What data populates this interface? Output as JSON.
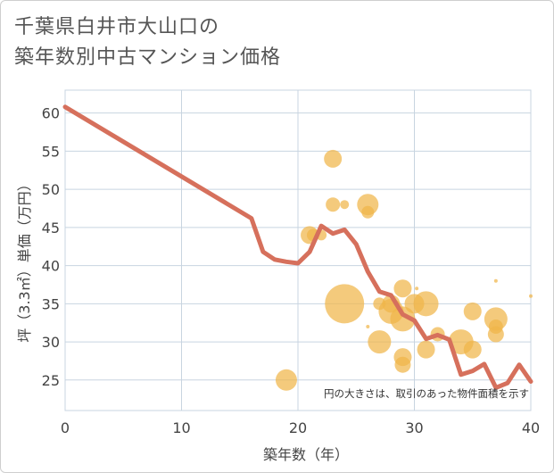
{
  "chart_data": {
    "type": "scatter",
    "title_lines": [
      "千葉県白井市大山口の",
      "築年数別中古マンション価格"
    ],
    "xlabel": "築年数（年）",
    "ylabel": "坪（3.3㎡）単価（万円）",
    "note": "円の大きさは、取引のあった物件面積を示す",
    "xlim": [
      0,
      40
    ],
    "ylim": [
      21,
      63
    ],
    "xticks": [
      0,
      10,
      20,
      30,
      40
    ],
    "yticks": [
      25,
      30,
      35,
      40,
      45,
      50,
      55,
      60
    ],
    "grid": true,
    "colors": {
      "line": "#d6705c",
      "bubble": "#f0b54a",
      "grid": "#c8d4e0"
    },
    "series": [
      {
        "type": "line",
        "points": [
          [
            0,
            60.8
          ],
          [
            16,
            46.2
          ],
          [
            17,
            41.8
          ],
          [
            18,
            40.8
          ],
          [
            19,
            40.5
          ],
          [
            20,
            40.3
          ],
          [
            21,
            41.8
          ],
          [
            22,
            45.2
          ],
          [
            23,
            44.2
          ],
          [
            24,
            44.7
          ],
          [
            25,
            42.8
          ],
          [
            26,
            39.2
          ],
          [
            27,
            36.6
          ],
          [
            28,
            36.1
          ],
          [
            29,
            33.6
          ],
          [
            30,
            32.8
          ],
          [
            31,
            30.4
          ],
          [
            32,
            30.9
          ],
          [
            33,
            30.3
          ],
          [
            34,
            25.7
          ],
          [
            35,
            26.2
          ],
          [
            36,
            27.1
          ],
          [
            37,
            24.0
          ],
          [
            38,
            24.6
          ],
          [
            39,
            27.0
          ],
          [
            40,
            24.8
          ]
        ]
      },
      {
        "type": "bubble",
        "points": [
          [
            19,
            25,
            12
          ],
          [
            21,
            44,
            10
          ],
          [
            21.3,
            44,
            7
          ],
          [
            22,
            44,
            6
          ],
          [
            23,
            54,
            10
          ],
          [
            23,
            48,
            8
          ],
          [
            24,
            48,
            5
          ],
          [
            24,
            35,
            22
          ],
          [
            26,
            48,
            12
          ],
          [
            26,
            47,
            7
          ],
          [
            26,
            32,
            2
          ],
          [
            27,
            35,
            7
          ],
          [
            27,
            30,
            13
          ],
          [
            28,
            35,
            10
          ],
          [
            28,
            34,
            14
          ],
          [
            29,
            37,
            10
          ],
          [
            29,
            33,
            14
          ],
          [
            29,
            28,
            10
          ],
          [
            29,
            27,
            9
          ],
          [
            30,
            35,
            11
          ],
          [
            30.2,
            37,
            2
          ],
          [
            31,
            35,
            14
          ],
          [
            31,
            29,
            10
          ],
          [
            32,
            31,
            8
          ],
          [
            34,
            30,
            14
          ],
          [
            35,
            34,
            10
          ],
          [
            35,
            29,
            10
          ],
          [
            37,
            33,
            13
          ],
          [
            37,
            32,
            8
          ],
          [
            37,
            31,
            9
          ],
          [
            37,
            38,
            2
          ],
          [
            40,
            36,
            2
          ]
        ]
      }
    ]
  }
}
